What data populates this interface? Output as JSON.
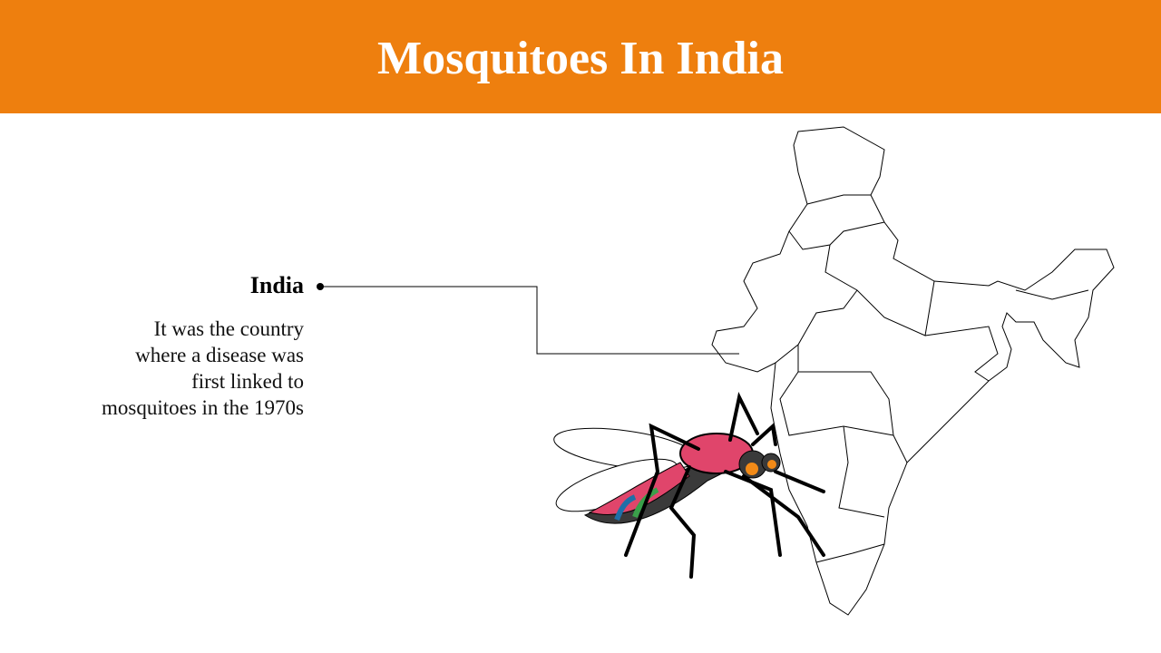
{
  "header": {
    "title": "Mosquitoes In India"
  },
  "callout": {
    "heading": "India",
    "lines": [
      "It was the country",
      "where a disease was",
      "first linked to",
      "mosquitoes in the 1970s"
    ]
  }
}
